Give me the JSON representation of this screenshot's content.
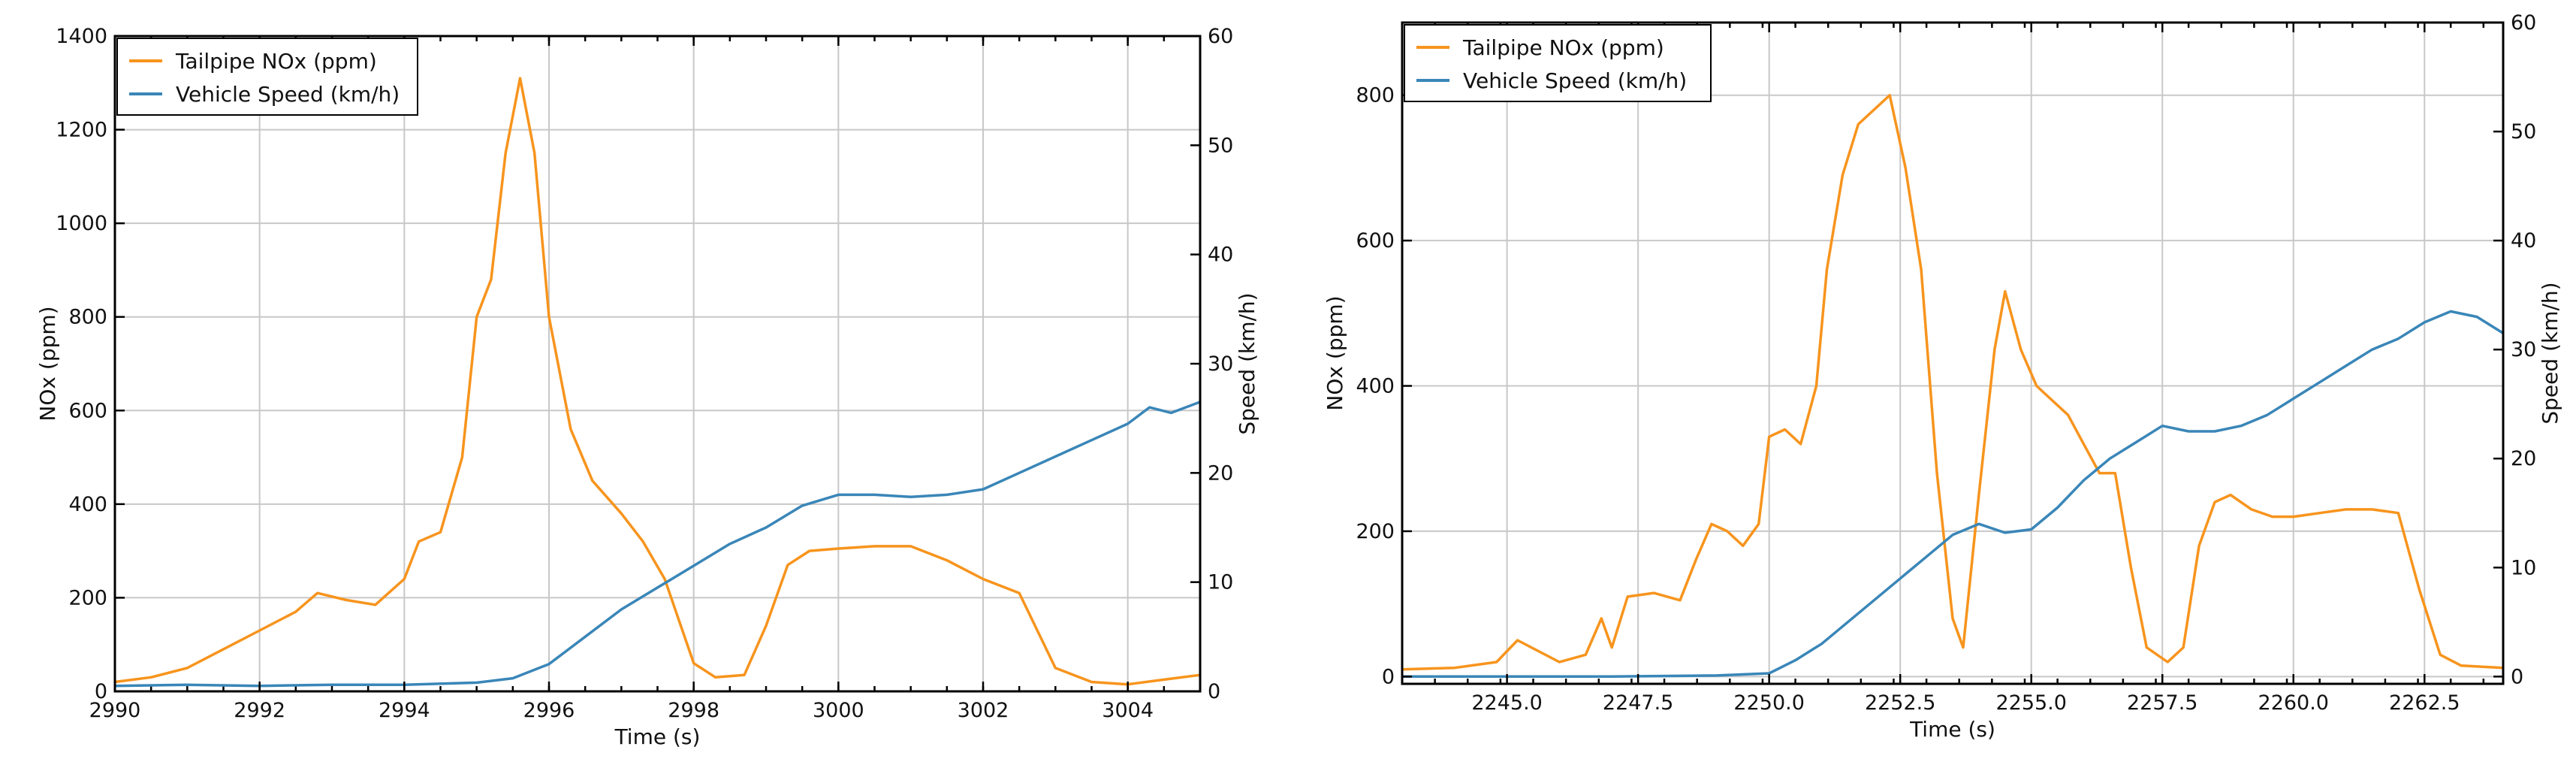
{
  "chart_data": [
    {
      "type": "line",
      "title": "",
      "xlabel": "Time (s)",
      "ylabel": "NOx (ppm)",
      "y2label": "Speed (km/h)",
      "xlim": [
        2990,
        3005
      ],
      "ylim": [
        0,
        1400
      ],
      "y2lim": [
        0,
        60
      ],
      "xticks": [
        2990,
        2992,
        2994,
        2996,
        2998,
        3000,
        3002,
        3004
      ],
      "yticks": [
        0,
        200,
        400,
        600,
        800,
        1000,
        1200,
        1400
      ],
      "y2ticks": [
        0,
        10,
        20,
        30,
        40,
        50,
        60
      ],
      "grid": true,
      "legend_position": "top-left",
      "series": [
        {
          "name": "Tailpipe NOx (ppm)",
          "axis": "left",
          "color": "#f7941d",
          "x": [
            2990,
            2990.5,
            2991,
            2991.5,
            2992,
            2992.5,
            2992.8,
            2993.2,
            2993.6,
            2994,
            2994.2,
            2994.5,
            2994.8,
            2995,
            2995.2,
            2995.4,
            2995.6,
            2995.8,
            2996,
            2996.3,
            2996.6,
            2997,
            2997.3,
            2997.6,
            2998,
            2998.3,
            2998.7,
            2999,
            2999.3,
            2999.6,
            3000,
            3000.5,
            3001,
            3001.5,
            3002,
            3002.5,
            3003,
            3003.5,
            3004,
            3004.5,
            3005
          ],
          "values": [
            20,
            30,
            50,
            90,
            130,
            170,
            210,
            195,
            185,
            240,
            320,
            340,
            500,
            800,
            880,
            1150,
            1310,
            1150,
            800,
            560,
            450,
            380,
            320,
            240,
            60,
            30,
            35,
            140,
            270,
            300,
            305,
            310,
            310,
            280,
            240,
            210,
            50,
            20,
            15,
            25,
            35
          ]
        },
        {
          "name": "Vehicle Speed (km/h)",
          "axis": "right",
          "color": "#3a86b8",
          "x": [
            2990,
            2991,
            2992,
            2993,
            2994,
            2995,
            2995.5,
            2996,
            2996.5,
            2997,
            2997.5,
            2998,
            2998.5,
            2999,
            2999.5,
            3000,
            3000.5,
            3001,
            3001.5,
            3002,
            3002.5,
            3003,
            3003.5,
            3004,
            3004.3,
            3004.6,
            3005
          ],
          "values": [
            0.5,
            0.6,
            0.5,
            0.6,
            0.6,
            0.8,
            1.2,
            2.5,
            5,
            7.5,
            9.5,
            11.5,
            13.5,
            15,
            17,
            18,
            18,
            17.8,
            18,
            18.5,
            20,
            21.5,
            23,
            24.5,
            26,
            25.5,
            26.5
          ]
        }
      ]
    },
    {
      "type": "line",
      "title": "",
      "xlabel": "Time (s)",
      "ylabel": "NOx (ppm)",
      "y2label": "Speed (km/h)",
      "xlim": [
        2243,
        2264
      ],
      "ylim": [
        -10,
        900
      ],
      "y2lim": [
        -0.667,
        60
      ],
      "xticks": [
        2245.0,
        2247.5,
        2250.0,
        2252.5,
        2255.0,
        2257.5,
        2260.0,
        2262.5
      ],
      "xtick_labels": [
        "2245.0",
        "2247.5",
        "2250.0",
        "2252.5",
        "2255.0",
        "2257.5",
        "2260.0",
        "2262.5"
      ],
      "yticks": [
        0,
        200,
        400,
        600,
        800
      ],
      "y2ticks": [
        0,
        10,
        20,
        30,
        40,
        50,
        60
      ],
      "grid": true,
      "legend_position": "top-left",
      "series": [
        {
          "name": "Tailpipe NOx (ppm)",
          "axis": "left",
          "color": "#f7941d",
          "x": [
            2243,
            2244,
            2244.8,
            2245.2,
            2245.6,
            2246,
            2246.5,
            2246.8,
            2247,
            2247.3,
            2247.8,
            2248.3,
            2248.6,
            2248.9,
            2249.2,
            2249.5,
            2249.8,
            2250,
            2250.3,
            2250.6,
            2250.9,
            2251.1,
            2251.4,
            2251.7,
            2252,
            2252.3,
            2252.6,
            2252.9,
            2253.2,
            2253.5,
            2253.7,
            2254,
            2254.3,
            2254.5,
            2254.8,
            2255.1,
            2255.4,
            2255.7,
            2256,
            2256.3,
            2256.6,
            2256.9,
            2257.2,
            2257.6,
            2257.9,
            2258.2,
            2258.5,
            2258.8,
            2259.2,
            2259.6,
            2260,
            2260.5,
            2261,
            2261.5,
            2262,
            2262.4,
            2262.8,
            2263.2,
            2264
          ],
          "values": [
            10,
            12,
            20,
            50,
            35,
            20,
            30,
            80,
            40,
            110,
            115,
            105,
            160,
            210,
            200,
            180,
            210,
            330,
            340,
            320,
            400,
            560,
            690,
            760,
            780,
            800,
            700,
            560,
            280,
            80,
            40,
            250,
            450,
            530,
            450,
            400,
            380,
            360,
            320,
            280,
            280,
            150,
            40,
            20,
            40,
            180,
            240,
            250,
            230,
            220,
            220,
            225,
            230,
            230,
            225,
            120,
            30,
            15,
            12
          ]
        },
        {
          "name": "Vehicle Speed (km/h)",
          "axis": "right",
          "color": "#3a86b8",
          "x": [
            2243,
            2245,
            2247,
            2249,
            2250,
            2250.5,
            2251,
            2251.5,
            2252,
            2252.5,
            2253,
            2253.5,
            2254,
            2254.5,
            2255,
            2255.5,
            2256,
            2256.5,
            2257,
            2257.5,
            2258,
            2258.5,
            2259,
            2259.5,
            2260,
            2260.5,
            2261,
            2261.5,
            2262,
            2262.5,
            2263,
            2263.5,
            2264
          ],
          "values": [
            0,
            0,
            0,
            0.1,
            0.3,
            1.5,
            3,
            5,
            7,
            9,
            11,
            13,
            14,
            13.2,
            13.5,
            15.5,
            18,
            20,
            21.5,
            23,
            22.5,
            22.5,
            23,
            24,
            25.5,
            27,
            28.5,
            30,
            31,
            32.5,
            33.5,
            33,
            31.5
          ]
        }
      ]
    }
  ]
}
